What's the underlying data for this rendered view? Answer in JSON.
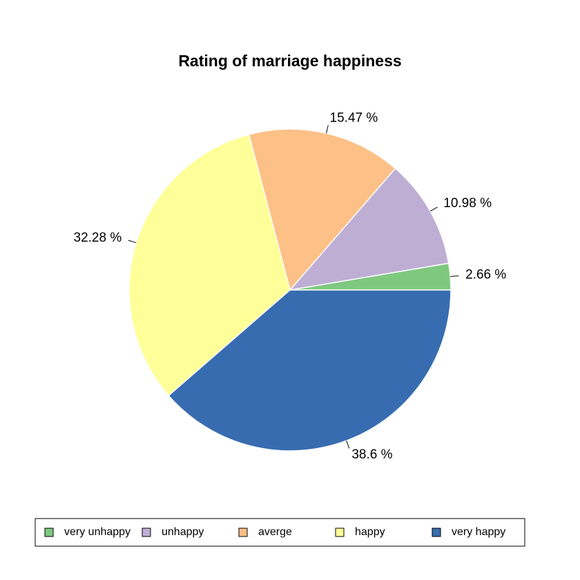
{
  "chart_data": {
    "type": "pie",
    "title": "Rating of marriage happiness",
    "slices": [
      {
        "name": "very unhappy",
        "value": 2.66,
        "label": "2.66 %",
        "color": "#7fc97f"
      },
      {
        "name": "unhappy",
        "value": 10.98,
        "label": "10.98 %",
        "color": "#beaed4"
      },
      {
        "name": "averge",
        "value": 15.47,
        "label": "15.47 %",
        "color": "#fdc086"
      },
      {
        "name": "happy",
        "value": 32.28,
        "label": "32.28 %",
        "color": "#ffff99"
      },
      {
        "name": "very happy",
        "value": 38.6,
        "label": "38.6 %",
        "color": "#386cb0"
      }
    ],
    "start_angle_deg": 0,
    "direction": "counterclockwise",
    "legend_position": "bottom",
    "legend_layout": "horizontal"
  }
}
